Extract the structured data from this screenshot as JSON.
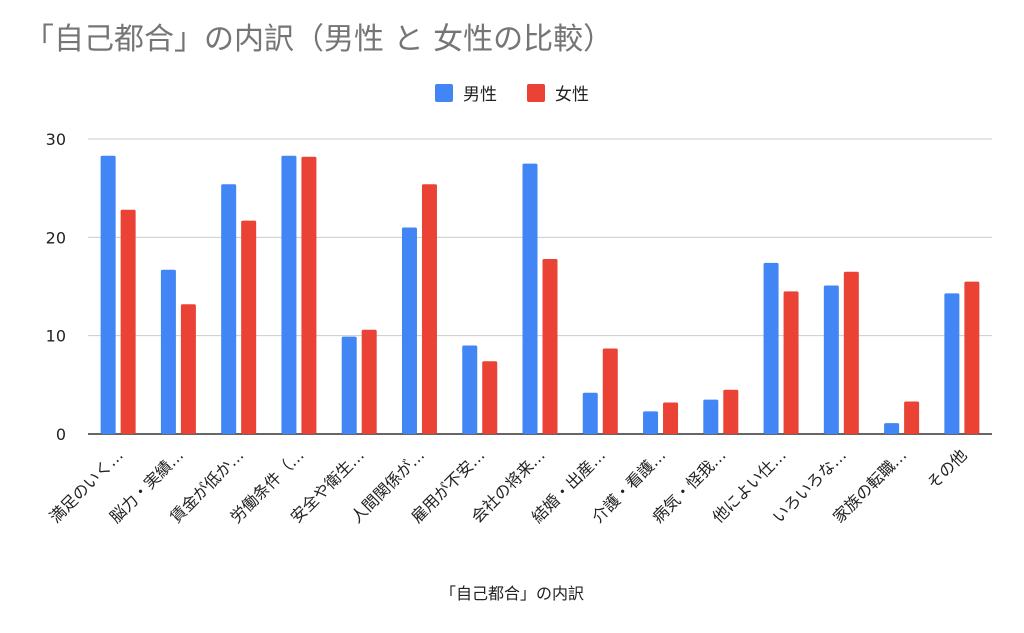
{
  "chart_data": {
    "type": "bar",
    "title": "「自己都合」の内訳（男性 と 女性の比較）",
    "xlabel": "「自己都合」の内訳",
    "ylabel": "",
    "ylim": [
      0,
      30
    ],
    "yticks": [
      0,
      10,
      20,
      30
    ],
    "legend_position": "top-center",
    "grid": true,
    "categories": [
      "満足のいく…",
      "脳力・実績…",
      "賃金が低か…",
      "労働条件（…",
      "安全や衛生…",
      "人間関係が…",
      "雇用が不安…",
      "会社の将来…",
      "結婚・出産…",
      "介護・看護…",
      "病気・怪我…",
      "他によい仕…",
      "いろいろな…",
      "家族の転職…",
      "その他"
    ],
    "series": [
      {
        "name": "男性",
        "color": "#4285f4",
        "values": [
          28.3,
          16.7,
          25.4,
          28.3,
          9.9,
          21.0,
          9.0,
          27.5,
          4.2,
          2.3,
          3.5,
          17.4,
          15.1,
          1.1,
          14.3
        ]
      },
      {
        "name": "女性",
        "color": "#ea4335",
        "values": [
          22.8,
          13.2,
          21.7,
          28.2,
          10.6,
          25.4,
          7.4,
          17.8,
          8.7,
          3.2,
          4.5,
          14.5,
          16.5,
          3.3,
          15.5
        ]
      }
    ]
  }
}
